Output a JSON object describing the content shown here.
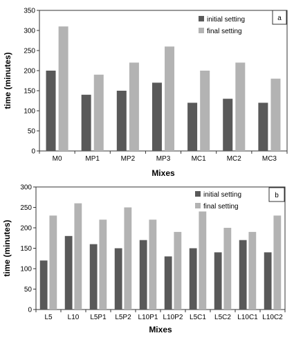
{
  "chart_data": [
    {
      "type": "bar",
      "panel_label": "a",
      "categories": [
        "M0",
        "MP1",
        "MP2",
        "MP3",
        "MC1",
        "MC2",
        "MC3"
      ],
      "series": [
        {
          "name": "initial setting",
          "color": "#595959",
          "values": [
            200,
            140,
            150,
            170,
            120,
            130,
            120
          ]
        },
        {
          "name": "final setting",
          "color": "#b3b3b3",
          "values": [
            310,
            190,
            220,
            260,
            200,
            220,
            180
          ]
        }
      ],
      "ylim": [
        0,
        350
      ],
      "yticks": [
        0,
        50,
        100,
        150,
        200,
        250,
        300,
        350
      ],
      "xlabel": "Mixes",
      "ylabel": "time (minutes)",
      "legend_position": "top-right",
      "grid": false
    },
    {
      "type": "bar",
      "panel_label": "b",
      "categories": [
        "L5",
        "L10",
        "L5P1",
        "L5P2",
        "L10P1",
        "L10P2",
        "L5C1",
        "L5C2",
        "L10C1",
        "L10C2"
      ],
      "series": [
        {
          "name": "initial setting",
          "color": "#595959",
          "values": [
            120,
            180,
            160,
            150,
            170,
            130,
            150,
            140,
            170,
            140
          ]
        },
        {
          "name": "final setting",
          "color": "#b3b3b3",
          "values": [
            230,
            260,
            220,
            250,
            220,
            190,
            240,
            200,
            190,
            230
          ]
        }
      ],
      "ylim": [
        0,
        300
      ],
      "yticks": [
        0,
        50,
        100,
        150,
        200,
        250,
        300
      ],
      "xlabel": "Mixes",
      "ylabel": "time (minutes)",
      "legend_position": "top-right",
      "grid": false
    }
  ]
}
